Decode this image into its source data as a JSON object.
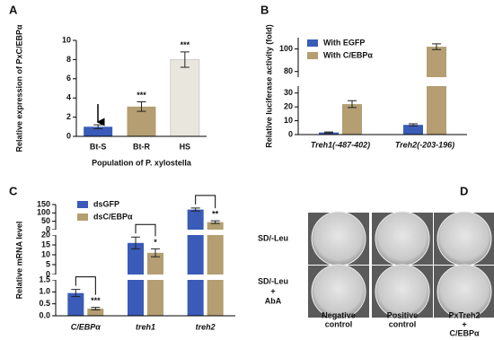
{
  "chart_data": [
    {
      "panel": "A",
      "type": "bar",
      "y_label": "Relative expression of PxC/EBPα",
      "x_label": "Population of P. xylostella",
      "categories": [
        "Bt-S",
        "Bt-R",
        "HS"
      ],
      "values": [
        1,
        3.1,
        8
      ],
      "errors": [
        0.2,
        0.5,
        0.8
      ],
      "colors": [
        "#3a5bb8",
        "#b49e72",
        "#e9e7dd"
      ],
      "significance": [
        null,
        "***",
        "***"
      ],
      "ylim": [
        0,
        10
      ],
      "yticks": [
        0,
        2,
        4,
        6,
        8,
        10
      ]
    },
    {
      "panel": "B",
      "type": "grouped_bar",
      "y_label": "Relative luciferase activity (fold)",
      "categories": [
        "Treh1(-487-402)",
        "Treh2(-203-196)"
      ],
      "series": [
        {
          "name": "With EGFP",
          "color": "#3a5bb8",
          "values": [
            1.5,
            7
          ],
          "errors": [
            0.4,
            0.8
          ]
        },
        {
          "name": "With C/EBPα",
          "color": "#b49e72",
          "values": [
            22,
            102
          ],
          "errors": [
            2.5,
            2.5
          ]
        }
      ],
      "ylim": [
        0,
        110
      ],
      "axis_break": [
        35,
        75
      ],
      "yticks": [
        0,
        10,
        20,
        30,
        80,
        100
      ],
      "legend": "upper left"
    },
    {
      "panel": "C",
      "type": "segmented_bar",
      "y_label": "Relative mRNA level",
      "categories": [
        "C/EBPα",
        "treh1",
        "treh2"
      ],
      "series": [
        {
          "name": "dsGFP",
          "color": "#3a5bb8",
          "values": [
            0.95,
            16,
            120
          ],
          "errors": [
            0.15,
            3,
            9
          ]
        },
        {
          "name": "dsC/EBPα",
          "color": "#b49e72",
          "values": [
            0.3,
            11,
            45
          ],
          "errors": [
            0.05,
            2,
            8
          ],
          "significance": [
            "***",
            "*",
            "**"
          ]
        }
      ],
      "segments": [
        {
          "ylim": [
            0,
            1.5
          ],
          "yticks": [
            {
              "value": 0,
              "label": "0.0"
            },
            0.5,
            {
              "value": 1,
              "label": "1.0"
            },
            1.5
          ]
        },
        {
          "ylim": [
            0,
            20
          ],
          "yticks": [
            0,
            5,
            10,
            15,
            20
          ]
        },
        {
          "ylim": [
            0,
            150
          ],
          "yticks": [
            0,
            50,
            100,
            150
          ]
        }
      ],
      "legend": "upper left"
    }
  ],
  "panel_d": {
    "panel": "D",
    "rows": [
      [
        "SD/-Leu"
      ],
      [
        "SD/-Leu",
        "+",
        "AbA"
      ]
    ],
    "columns": [
      [
        "Negative",
        "control"
      ],
      [
        "Positive",
        "control"
      ],
      [
        "PxTreh2",
        "+",
        "C/EBPα"
      ]
    ]
  }
}
